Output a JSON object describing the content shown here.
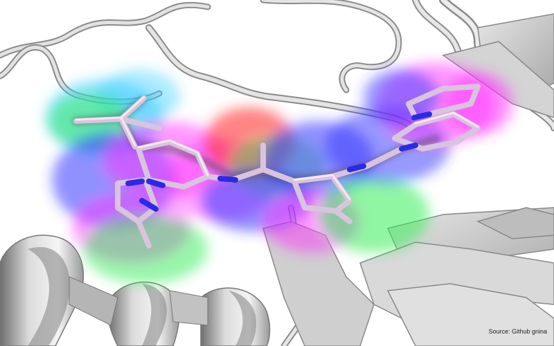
{
  "figure": {
    "caption": "Source: Github gnina",
    "subject": "protein-ligand-binding-pocket",
    "colors": {
      "background": "#ffffff",
      "protein_cartoon": "#c8c8c8",
      "protein_shadow": "#8f8f8f",
      "ligand_carbon": "#d8c4dc",
      "ligand_nitrogen": "#2a2ae6",
      "density_magenta": "#ff33ff",
      "density_blue": "#3333ff",
      "density_cyan": "#33ccff",
      "density_green": "#33ee55",
      "density_red": "#ff3333"
    }
  }
}
